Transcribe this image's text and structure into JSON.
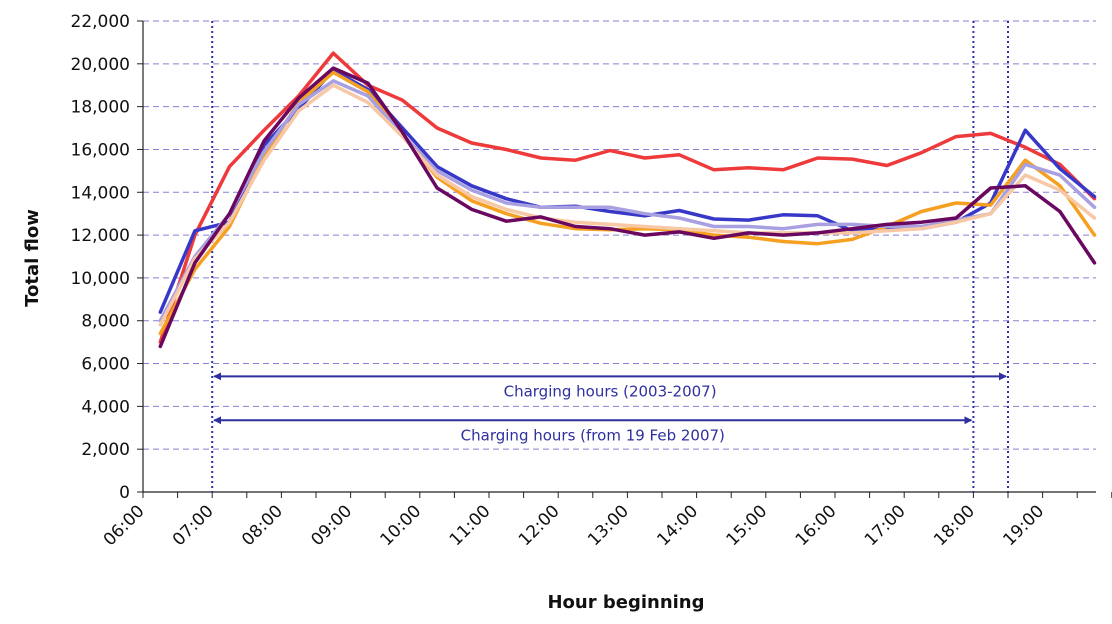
{
  "chart_data": {
    "type": "line",
    "title": "",
    "xlabel": "Hour beginning",
    "ylabel": "Total flow",
    "ylim": [
      0,
      22000
    ],
    "yticks": [
      "0",
      "2,000",
      "4,000",
      "6,000",
      "8,000",
      "10,000",
      "12,000",
      "14,000",
      "16,000",
      "18,000",
      "20,000",
      "22,000"
    ],
    "ytick_values": [
      0,
      2000,
      4000,
      6000,
      8000,
      10000,
      12000,
      14000,
      16000,
      18000,
      20000,
      22000
    ],
    "xticks": [
      "06:00",
      "07:00",
      "08:00",
      "09:00",
      "10:00",
      "11:00",
      "12:00",
      "13:00",
      "14:00",
      "15:00",
      "16:00",
      "17:00",
      "18:00",
      "19:00"
    ],
    "x_start": "06:00",
    "x_step_minutes": 30,
    "grid": "horizontal dashed",
    "legend": "none",
    "series": [
      {
        "color": "#ee3a3a",
        "values": [
          7000,
          12000,
          15200,
          16900,
          18500,
          20500,
          19000,
          18300,
          17000,
          16300,
          16000,
          15600,
          15500,
          15950,
          15600,
          15750,
          15050,
          15150,
          15050,
          15600,
          15550,
          15250,
          15850,
          16600,
          16750,
          16100,
          15300,
          13700
        ]
      },
      {
        "color": "#3838c8",
        "values": [
          8400,
          12200,
          12600,
          16200,
          17900,
          19700,
          18800,
          17000,
          15200,
          14300,
          13700,
          13300,
          13350,
          13100,
          12900,
          13150,
          12750,
          12700,
          12950,
          12900,
          12200,
          12300,
          12300,
          12600,
          13500,
          16900,
          15100,
          13800
        ]
      },
      {
        "color": "#f5a020",
        "values": [
          7400,
          10400,
          12400,
          15700,
          18200,
          19600,
          18700,
          16700,
          14700,
          13600,
          13000,
          12550,
          12300,
          12250,
          12300,
          12250,
          12000,
          11900,
          11700,
          11600,
          11800,
          12400,
          13100,
          13500,
          13400,
          15500,
          14300,
          12000
        ]
      },
      {
        "color": "#a8a0e0",
        "values": [
          8000,
          11000,
          13000,
          15900,
          18100,
          19200,
          18500,
          16700,
          15000,
          14100,
          13500,
          13300,
          13300,
          13300,
          13000,
          12800,
          12400,
          12400,
          12300,
          12500,
          12500,
          12400,
          12400,
          12700,
          13000,
          15300,
          14800,
          13300
        ]
      },
      {
        "color": "#f8c8a4",
        "values": [
          7800,
          10900,
          12600,
          15500,
          17800,
          19000,
          18200,
          16600,
          14800,
          13800,
          13200,
          12800,
          12600,
          12500,
          12400,
          12300,
          12200,
          12100,
          12100,
          12100,
          12100,
          12200,
          12300,
          12600,
          13000,
          14800,
          14100,
          12800
        ]
      },
      {
        "color": "#6a0860",
        "values": [
          6800,
          10700,
          13000,
          16400,
          18400,
          19800,
          19100,
          16800,
          14200,
          13200,
          12650,
          12850,
          12400,
          12300,
          12000,
          12150,
          11850,
          12100,
          12000,
          12100,
          12300,
          12500,
          12600,
          12800,
          14200,
          14300,
          13100,
          10700
        ]
      }
    ],
    "annotations": [
      {
        "text": "Charging hours (2003-2007)",
        "from": "07:00",
        "to": "18:30",
        "y": 5400
      },
      {
        "text": "Charging hours (from 19 Feb 2007)",
        "from": "07:00",
        "to": "18:00",
        "y": 3350
      }
    ],
    "reference_lines_x": [
      "07:00",
      "18:00",
      "18:30"
    ]
  }
}
